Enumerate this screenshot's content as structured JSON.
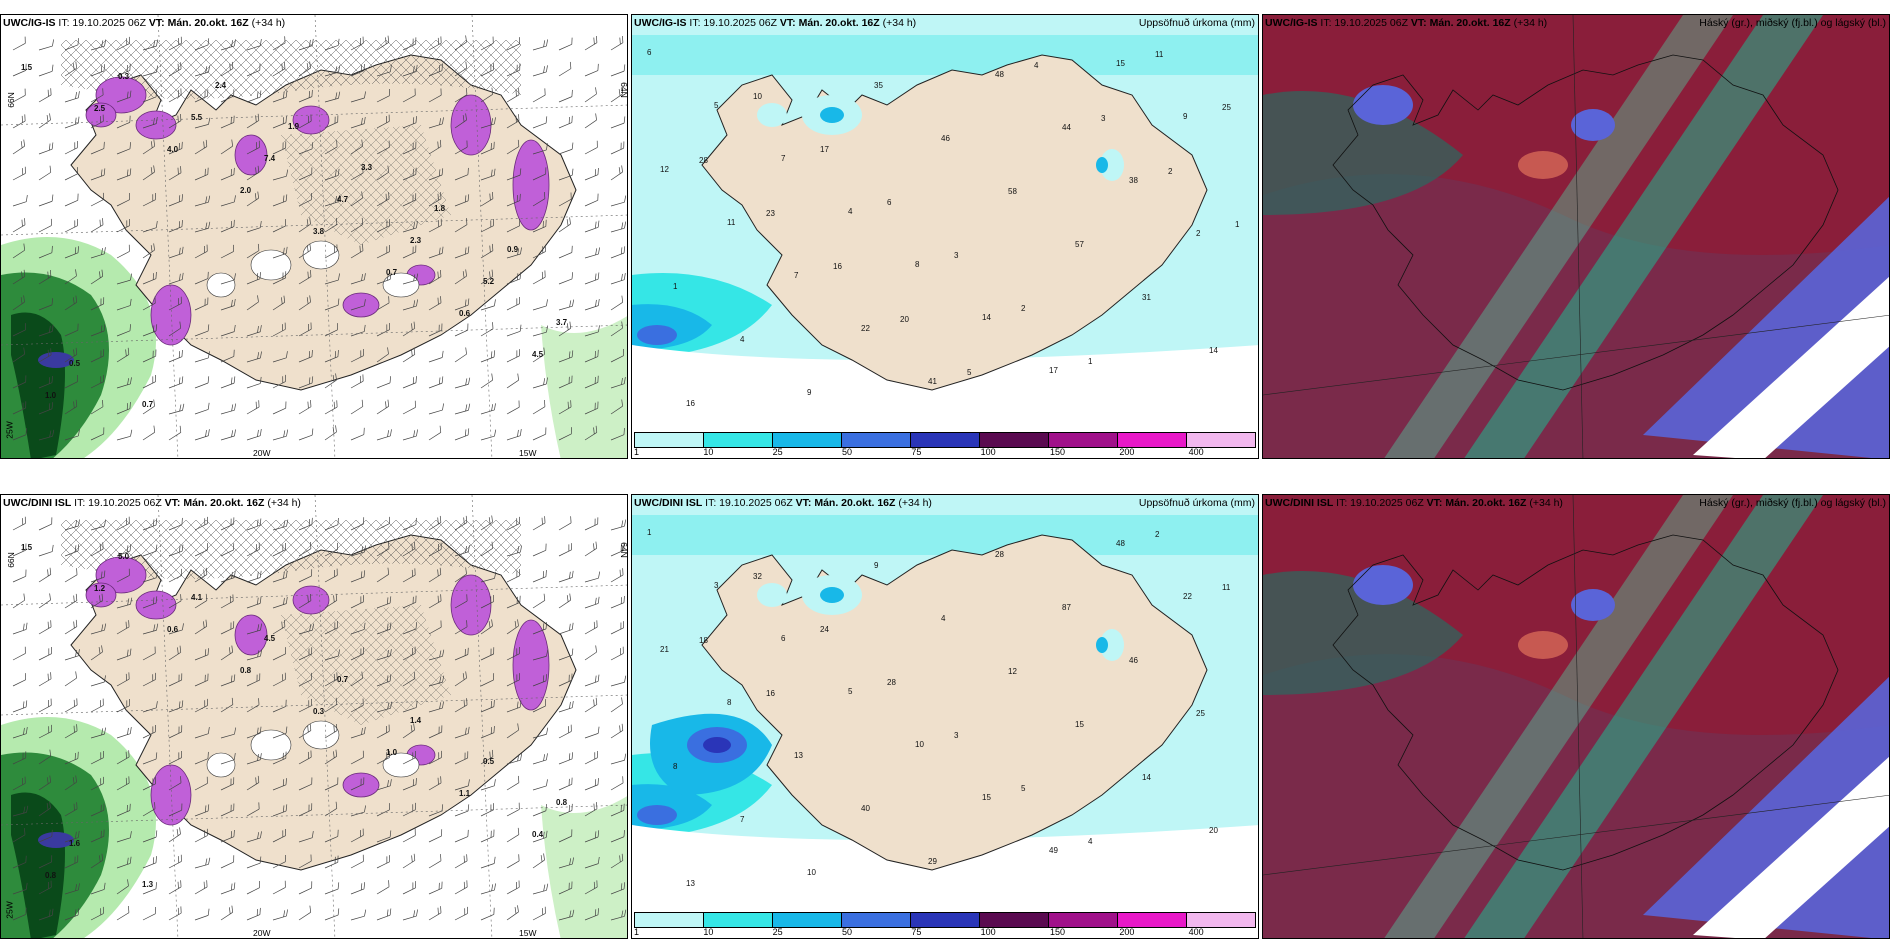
{
  "panels": [
    {
      "id": "r1c1",
      "kind": "wind",
      "title_model": "UWC/IG-IS",
      "title_rest": " IT: 19.10.2025 06Z ",
      "title_vt": "VT: Mán. 20.okt. 16Z",
      "title_lead": " (+34 h)",
      "right_label": "",
      "axis": {
        "lon1": "20W",
        "lon2": "15W",
        "lat1": "66N",
        "lat2": "64N",
        "lonw": "25W"
      },
      "labels": [
        "1.5",
        "2.5",
        "4.0",
        "2.0",
        "3.8",
        "0.7",
        "0.6",
        "4.5",
        "1.0",
        "0.3",
        "5.5",
        "7.4",
        "4.7",
        "2.3",
        "5.2",
        "3.7",
        "0.5",
        "0.7",
        "2.4",
        "1.9",
        "3.3",
        "1.8",
        "0.9"
      ]
    },
    {
      "id": "r1c2",
      "kind": "precip",
      "title_model": "UWC/IG-IS",
      "title_rest": " IT: 19.10.2025 06Z ",
      "title_vt": "VT: Mán. 20.okt. 16Z",
      "title_lead": " (+34 h)",
      "right_label": "Uppsöfnuð úrkoma (mm)",
      "labels": [
        "6",
        "5",
        "7",
        "4",
        "8",
        "14",
        "17",
        "15",
        "9",
        "12",
        "11",
        "7",
        "22",
        "41",
        "48",
        "44",
        "38",
        "2",
        "1",
        "4",
        "9",
        "35",
        "46",
        "58",
        "57",
        "31",
        "14",
        "16",
        "10",
        "17",
        "6",
        "3",
        "2",
        "1",
        "11",
        "25",
        "28",
        "23",
        "16",
        "20",
        "5",
        "4",
        "3",
        "2",
        "1"
      ],
      "legend": [
        "1",
        "10",
        "25",
        "50",
        "75",
        "100",
        "150",
        "200",
        "400"
      ]
    },
    {
      "id": "r1c3",
      "kind": "clouds",
      "title_model": "UWC/IG-IS",
      "title_rest": " IT: 19.10.2025 06Z ",
      "title_vt": "VT: Mán. 20.okt. 16Z",
      "title_lead": " (+34 h)",
      "right_label": "Háský (gr.), miðský (fj.bl.) og lágský (bl.)"
    },
    {
      "id": "r2c1",
      "kind": "wind",
      "title_model": "UWC/DINI ISL",
      "title_rest": " IT: 19.10.2025 06Z ",
      "title_vt": "VT: Mán. 20.okt. 16Z",
      "title_lead": " (+34 h)",
      "right_label": "",
      "axis": {
        "lon1": "20W",
        "lon2": "15W",
        "lat1": "66N",
        "lat2": "64N",
        "lonw": "25W"
      },
      "labels": [
        "1.5",
        "1.2",
        "0.6",
        "0.8",
        "0.3",
        "1.0",
        "1.1",
        "0.4",
        "0.8",
        "5.0",
        "4.1",
        "4.5",
        "0.7",
        "1.4",
        "0.5",
        "0.8",
        "1.6",
        "1.3"
      ]
    },
    {
      "id": "r2c2",
      "kind": "precip",
      "title_model": "UWC/DINI ISL",
      "title_rest": " IT: 19.10.2025 06Z ",
      "title_vt": "VT: Mán. 20.okt. 16Z",
      "title_lead": " (+34 h)",
      "right_label": "Uppsöfnuð úrkoma (mm)",
      "labels": [
        "1",
        "3",
        "6",
        "5",
        "10",
        "15",
        "49",
        "48",
        "22",
        "21",
        "8",
        "13",
        "40",
        "29",
        "28",
        "87",
        "46",
        "25",
        "8",
        "7",
        "10",
        "9",
        "4",
        "12",
        "15",
        "14",
        "20",
        "13",
        "32",
        "24",
        "28",
        "3",
        "5",
        "4",
        "2",
        "11",
        "18",
        "16"
      ],
      "legend": [
        "1",
        "10",
        "25",
        "50",
        "75",
        "100",
        "150",
        "200",
        "400"
      ]
    },
    {
      "id": "r2c3",
      "kind": "clouds",
      "title_model": "UWC/DINI ISL",
      "title_rest": " IT: 19.10.2025 06Z ",
      "title_vt": "VT: Mán. 20.okt. 16Z",
      "title_lead": " (+34 h)",
      "right_label": "Háský (gr.), miðský (fj.bl.) og lágský (bl.)"
    }
  ],
  "legend_colors": [
    "#bff6f6",
    "#35e6e6",
    "#18b8e8",
    "#3a6fe0",
    "#2a35b8",
    "#5a0a50",
    "#a0108a",
    "#e818c8",
    "#f2b8ee"
  ]
}
